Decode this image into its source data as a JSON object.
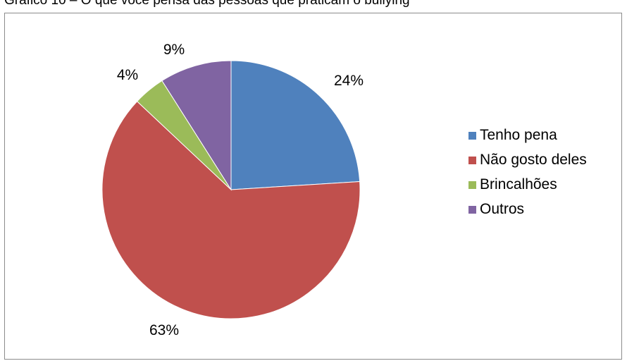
{
  "caption": "Gráfico 10 – O que você pensa das pessoas que praticam o bullying",
  "chart_data": {
    "type": "pie",
    "title": "",
    "start_angle_deg": 0,
    "direction": "clockwise",
    "slices": [
      {
        "label": "Tenho pena",
        "value": 24,
        "display": "24%",
        "color": "#4f81bd"
      },
      {
        "label": "Não gosto deles",
        "value": 63,
        "display": "63%",
        "color": "#c0504d"
      },
      {
        "label": "Brincalhões",
        "value": 4,
        "display": "4%",
        "color": "#9bbb59"
      },
      {
        "label": "Outros",
        "value": 9,
        "display": "9%",
        "color": "#8064a2"
      }
    ],
    "legend_position": "right"
  }
}
